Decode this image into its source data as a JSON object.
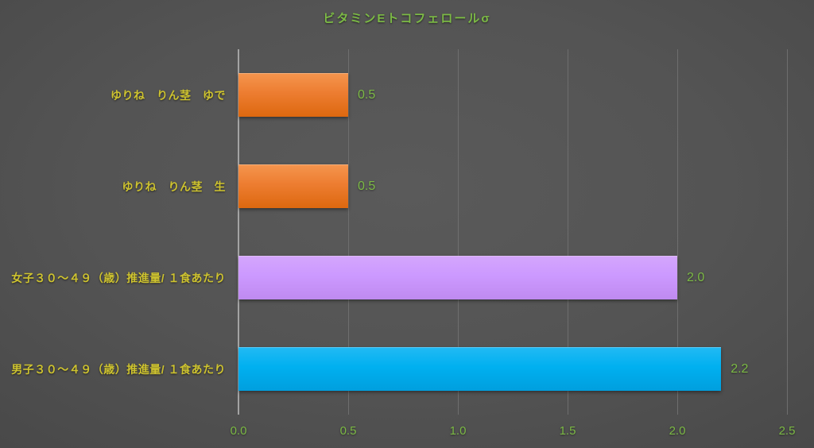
{
  "chart_data": {
    "type": "bar",
    "orientation": "horizontal",
    "title": "ビタミンEトコフェロールσ",
    "xlabel": "",
    "ylabel": "",
    "xlim": [
      0,
      2.5
    ],
    "x_tick_step": 0.5,
    "x_ticks": [
      "0.0",
      "0.5",
      "1.0",
      "1.5",
      "2.0",
      "2.5"
    ],
    "grid": true,
    "legend_position": "none",
    "categories": [
      "ゆりね　りん茎　ゆで",
      "ゆりね　りん茎　生",
      "女子３０～４９（歳）推進量/ １食あたり",
      "男子３０～４９（歳）推進量/ １食あたり"
    ],
    "values": [
      0.5,
      0.5,
      2.0,
      2.2
    ],
    "bars": [
      {
        "label": "ゆりね　りん茎　ゆで",
        "value": 0.5,
        "display_value": "0.5",
        "color": "#ED7D31",
        "color_top": "#F5954E",
        "color_bottom": "#DD680F"
      },
      {
        "label": "ゆりね　りん茎　生",
        "value": 0.5,
        "display_value": "0.5",
        "color": "#ED7D31",
        "color_top": "#F5954E",
        "color_bottom": "#DD680F"
      },
      {
        "label": "女子３０～４９（歳）推進量/ １食あたり",
        "value": 2.0,
        "display_value": "2.0",
        "color": "#CC99FF",
        "color_top": "#D4A6FC",
        "color_bottom": "#BF8AF0"
      },
      {
        "label": "男子３０～４９（歳）推進量/ １食あたり",
        "value": 2.2,
        "display_value": "2.2",
        "color": "#00B0F0",
        "color_top": "#22BAF4",
        "color_bottom": "#009FDE"
      }
    ],
    "colors": {
      "title_text": "#7CBA45",
      "category_label_text": "#CEC32F",
      "value_label_text": "#7CBA45",
      "tick_label_text": "#7CBA45",
      "axis_line": "#A3A3A3",
      "gridline": "#6E6E6E"
    }
  }
}
